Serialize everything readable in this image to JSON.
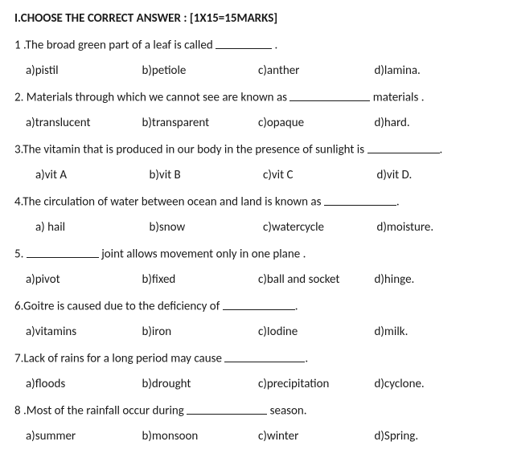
{
  "heading": "I.CHOOSE THE CORRECT ANSWER : [1X15=15MARKS]",
  "questions": [
    {
      "num": "1 .",
      "pre": "The broad green part of a leaf is called ",
      "post": " .",
      "blank_w": 70,
      "opts": [
        "a)pistil",
        "b)petiole",
        "c)anther",
        "d)lamina."
      ],
      "indent": 0
    },
    {
      "num": "2.",
      "pre": " Materials through which we cannot see are known as ",
      "post": " materials .",
      "blank_w": 100,
      "opts": [
        "a)translucent",
        "b)transparent",
        "c)opaque",
        "d)hard."
      ],
      "indent": 0
    },
    {
      "num": "3.",
      "pre": "The vitamin that is produced in our  body in the presence of sunlight is ",
      "post": ".",
      "blank_w": 90,
      "opts": [
        "a)vit A",
        "b)vit B",
        "c)vit C",
        "d)vit D."
      ],
      "indent": 12
    },
    {
      "num": "4.",
      "pre": "The circulation of water between ocean and land is known as ",
      "post": ".",
      "blank_w": 90,
      "opts": [
        "a) hail",
        "b)snow",
        "c)watercycle",
        "d)moisture."
      ],
      "indent": 12
    },
    {
      "num": "5.",
      "pre": " ",
      "post": " joint  allows movement only in one plane .",
      "blank_w": 90,
      "opts": [
        "a)pivot",
        "b)fixed",
        "c)ball and socket",
        "d)hinge."
      ],
      "indent": 0
    },
    {
      "num": "6.",
      "pre": "Goitre is caused due to the deficiency of ",
      "post": ".",
      "blank_w": 90,
      "opts": [
        "a)vitamins",
        "b)iron",
        "c)Iodine",
        "d)milk."
      ],
      "indent": 0
    },
    {
      "num": "7.",
      "pre": "Lack of rains for a long period may cause ",
      "post": ".",
      "blank_w": 100,
      "opts": [
        "a)floods",
        "b)drought",
        "c)precipitation",
        "d)cyclone."
      ],
      "indent": 0
    },
    {
      "num": "8 .",
      "pre": "Most of the rainfall occur during ",
      "post": " season.",
      "blank_w": 100,
      "opts": [
        "a)summer",
        "b)monsoon",
        "c)winter",
        "d)Spring."
      ],
      "indent": 0
    }
  ]
}
